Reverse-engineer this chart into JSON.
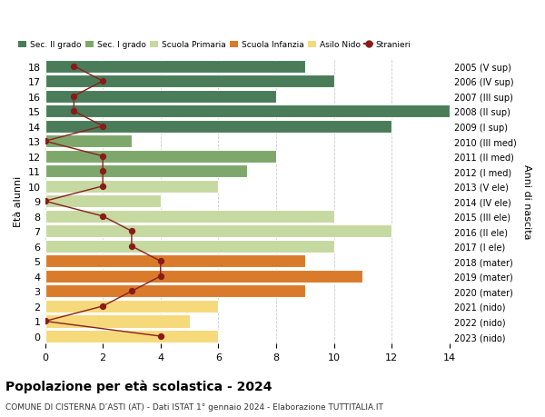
{
  "ages": [
    0,
    1,
    2,
    3,
    4,
    5,
    6,
    7,
    8,
    9,
    10,
    11,
    12,
    13,
    14,
    15,
    16,
    17,
    18
  ],
  "years": [
    "2023 (nido)",
    "2022 (nido)",
    "2021 (nido)",
    "2020 (mater)",
    "2019 (mater)",
    "2018 (mater)",
    "2017 (I ele)",
    "2016 (II ele)",
    "2015 (III ele)",
    "2014 (IV ele)",
    "2013 (V ele)",
    "2012 (I med)",
    "2011 (II med)",
    "2010 (III med)",
    "2009 (I sup)",
    "2008 (II sup)",
    "2007 (III sup)",
    "2006 (IV sup)",
    "2005 (V sup)"
  ],
  "bar_values": [
    6,
    5,
    6,
    9,
    11,
    9,
    10,
    12,
    10,
    4,
    6,
    7,
    8,
    3,
    12,
    14,
    8,
    10,
    9
  ],
  "stranieri": [
    4,
    0,
    2,
    3,
    4,
    4,
    3,
    3,
    2,
    0,
    2,
    2,
    2,
    0,
    2,
    1,
    1,
    2,
    1
  ],
  "age_colors": [
    "#f5d97a",
    "#f5d97a",
    "#f5d97a",
    "#d97b2a",
    "#d97b2a",
    "#d97b2a",
    "#c5d9a0",
    "#c5d9a0",
    "#c5d9a0",
    "#c5d9a0",
    "#c5d9a0",
    "#7ea86b",
    "#7ea86b",
    "#7ea86b",
    "#4a7c59",
    "#4a7c59",
    "#4a7c59",
    "#4a7c59",
    "#4a7c59"
  ],
  "color_sec2": "#4a7c59",
  "color_sec1": "#7ea86b",
  "color_primaria": "#c5d9a0",
  "color_infanzia": "#d97b2a",
  "color_nido": "#f5d97a",
  "color_stranieri": "#8b1a1a",
  "color_line": "#8b2020",
  "title_main": "Popolazione per età scolastica - 2024",
  "title_sub": "COMUNE DI CISTERNA D’ASTI (AT) - Dati ISTAT 1° gennaio 2024 - Elaborazione TUTTITALIA.IT",
  "ylabel_left": "Età alunni",
  "ylabel_right": "Anni di nascita",
  "xlim": [
    0,
    14
  ],
  "background": "#ffffff",
  "grid_color": "#cccccc"
}
